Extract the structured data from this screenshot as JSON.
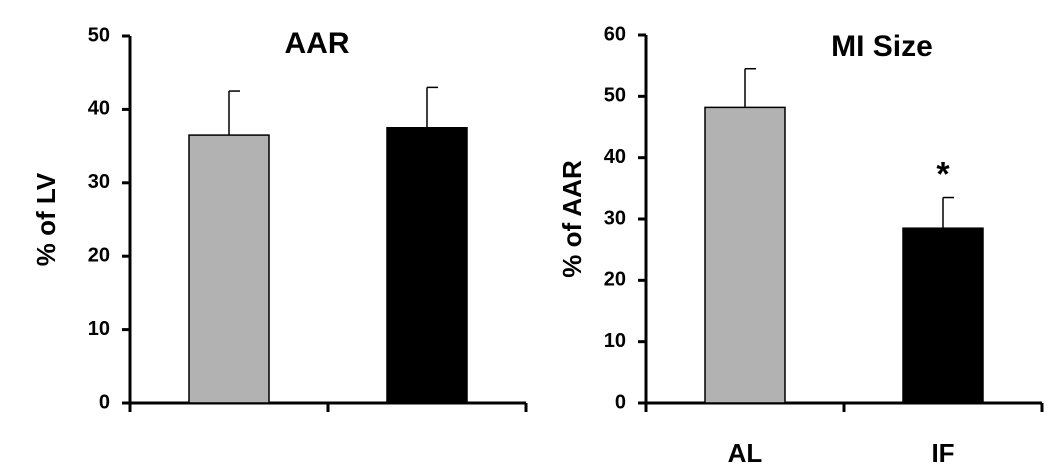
{
  "chart_data": [
    {
      "type": "bar",
      "title": "AAR",
      "ylabel": "% of LV",
      "xlabel": "",
      "ylim": [
        0,
        50
      ],
      "yticks": [
        0,
        10,
        20,
        30,
        40,
        50
      ],
      "categories": [
        "",
        ""
      ],
      "values": [
        36.5,
        37.5
      ],
      "errors": [
        6,
        5.5
      ],
      "colors": [
        "#b2b2b2",
        "#000000"
      ],
      "annotations": [
        "",
        ""
      ],
      "grid": false,
      "legend": "none"
    },
    {
      "type": "bar",
      "title": "MI Size",
      "ylabel": "% of AAR",
      "xlabel": "",
      "ylim": [
        0,
        60
      ],
      "yticks": [
        0,
        10,
        20,
        30,
        40,
        50,
        60
      ],
      "categories": [
        "AL",
        "IF"
      ],
      "values": [
        48.2,
        28.5
      ],
      "errors": [
        6.3,
        5
      ],
      "colors": [
        "#b2b2b2",
        "#000000"
      ],
      "annotations": [
        "",
        "*"
      ],
      "grid": false,
      "legend": "none"
    }
  ]
}
